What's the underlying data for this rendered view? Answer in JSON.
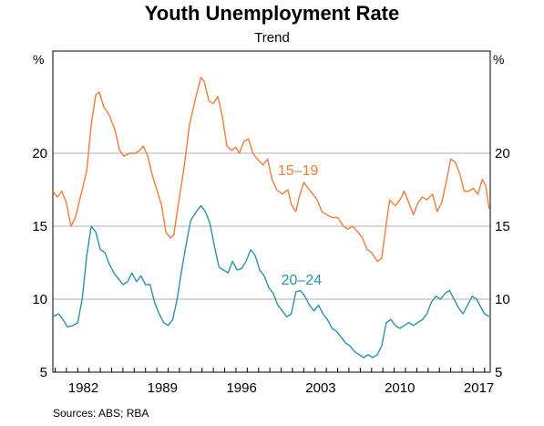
{
  "chart_data": {
    "type": "line",
    "title": "Youth Unemployment Rate",
    "subtitle": "Trend",
    "unit_left": "%",
    "unit_right": "%",
    "source": "Sources:   ABS; RBA",
    "x_range": [
      1979.8,
      2018.5
    ],
    "ylim": [
      5,
      27
    ],
    "y_ticks": [
      5,
      10,
      15,
      20
    ],
    "x_ticks": [
      {
        "value": 1982,
        "label": "1982"
      },
      {
        "value": 1989,
        "label": "1989"
      },
      {
        "value": 1996,
        "label": "1996"
      },
      {
        "value": 2003,
        "label": "2003"
      },
      {
        "value": 2010,
        "label": "2010"
      },
      {
        "value": 2017,
        "label": "2017"
      }
    ],
    "grid": true,
    "series": [
      {
        "name": "15–19",
        "color": "#f07c3c",
        "label_pos": {
          "x": 2001.5,
          "y": 18.5
        },
        "points": [
          [
            1979.8,
            17.4
          ],
          [
            1980.2,
            17.0
          ],
          [
            1980.6,
            17.4
          ],
          [
            1981.0,
            16.6
          ],
          [
            1981.4,
            15.0
          ],
          [
            1981.8,
            15.6
          ],
          [
            1982.3,
            17.2
          ],
          [
            1982.8,
            18.8
          ],
          [
            1983.2,
            22.0
          ],
          [
            1983.6,
            24.0
          ],
          [
            1983.9,
            24.2
          ],
          [
            1984.3,
            23.2
          ],
          [
            1984.8,
            22.6
          ],
          [
            1985.3,
            21.6
          ],
          [
            1985.7,
            20.2
          ],
          [
            1986.1,
            19.8
          ],
          [
            1986.6,
            20.0
          ],
          [
            1987.1,
            20.0
          ],
          [
            1987.5,
            20.2
          ],
          [
            1987.8,
            20.5
          ],
          [
            1988.2,
            19.8
          ],
          [
            1988.6,
            18.5
          ],
          [
            1989.0,
            17.5
          ],
          [
            1989.4,
            16.5
          ],
          [
            1989.8,
            14.6
          ],
          [
            1990.2,
            14.2
          ],
          [
            1990.5,
            14.4
          ],
          [
            1990.9,
            16.5
          ],
          [
            1991.4,
            19.0
          ],
          [
            1991.9,
            22.0
          ],
          [
            1992.5,
            24.0
          ],
          [
            1992.9,
            25.2
          ],
          [
            1993.2,
            24.9
          ],
          [
            1993.6,
            23.6
          ],
          [
            1994.0,
            23.4
          ],
          [
            1994.4,
            23.9
          ],
          [
            1994.8,
            22.5
          ],
          [
            1995.2,
            20.5
          ],
          [
            1995.6,
            20.2
          ],
          [
            1996.0,
            20.4
          ],
          [
            1996.3,
            20.0
          ],
          [
            1996.7,
            20.8
          ],
          [
            1997.1,
            21.0
          ],
          [
            1997.5,
            20.0
          ],
          [
            1997.9,
            19.6
          ],
          [
            1998.4,
            19.2
          ],
          [
            1998.8,
            19.6
          ],
          [
            1999.2,
            18.2
          ],
          [
            1999.6,
            17.5
          ],
          [
            2000.1,
            17.2
          ],
          [
            2000.6,
            17.5
          ],
          [
            2000.9,
            16.5
          ],
          [
            2001.3,
            16.0
          ],
          [
            2001.6,
            17.0
          ],
          [
            2002.0,
            18.0
          ],
          [
            2002.4,
            17.6
          ],
          [
            2002.8,
            17.2
          ],
          [
            2003.2,
            16.8
          ],
          [
            2003.6,
            16.0
          ],
          [
            2004.0,
            15.8
          ],
          [
            2004.5,
            15.6
          ],
          [
            2005.0,
            15.6
          ],
          [
            2005.5,
            15.0
          ],
          [
            2005.9,
            14.8
          ],
          [
            2006.3,
            15.0
          ],
          [
            2006.8,
            14.6
          ],
          [
            2007.2,
            14.2
          ],
          [
            2007.6,
            13.4
          ],
          [
            2008.0,
            13.2
          ],
          [
            2008.5,
            12.6
          ],
          [
            2008.9,
            12.8
          ],
          [
            2009.2,
            14.6
          ],
          [
            2009.6,
            16.8
          ],
          [
            2010.1,
            16.4
          ],
          [
            2010.5,
            16.8
          ],
          [
            2010.9,
            17.4
          ],
          [
            2011.3,
            16.6
          ],
          [
            2011.7,
            15.8
          ],
          [
            2012.1,
            16.6
          ],
          [
            2012.5,
            17.0
          ],
          [
            2012.9,
            16.8
          ],
          [
            2013.4,
            17.2
          ],
          [
            2013.8,
            16.0
          ],
          [
            2014.2,
            16.6
          ],
          [
            2014.6,
            18.0
          ],
          [
            2015.0,
            19.6
          ],
          [
            2015.4,
            19.4
          ],
          [
            2015.8,
            18.6
          ],
          [
            2016.2,
            17.4
          ],
          [
            2016.6,
            17.4
          ],
          [
            2017.0,
            17.6
          ],
          [
            2017.4,
            17.2
          ],
          [
            2017.8,
            18.2
          ],
          [
            2018.1,
            17.8
          ],
          [
            2018.4,
            16.2
          ]
        ]
      },
      {
        "name": "20–24",
        "color": "#2b93a8",
        "label_pos": {
          "x": 2001.8,
          "y": 11.0
        },
        "points": [
          [
            1979.8,
            8.8
          ],
          [
            1980.3,
            9.0
          ],
          [
            1980.7,
            8.6
          ],
          [
            1981.1,
            8.1
          ],
          [
            1981.6,
            8.2
          ],
          [
            1982.0,
            8.4
          ],
          [
            1982.4,
            10.0
          ],
          [
            1982.8,
            13.0
          ],
          [
            1983.2,
            15.0
          ],
          [
            1983.6,
            14.6
          ],
          [
            1984.0,
            13.4
          ],
          [
            1984.4,
            13.2
          ],
          [
            1984.8,
            12.4
          ],
          [
            1985.2,
            11.8
          ],
          [
            1985.6,
            11.4
          ],
          [
            1986.0,
            11.0
          ],
          [
            1986.4,
            11.2
          ],
          [
            1986.8,
            11.8
          ],
          [
            1987.2,
            11.2
          ],
          [
            1987.6,
            11.6
          ],
          [
            1988.0,
            11.0
          ],
          [
            1988.4,
            11.0
          ],
          [
            1988.8,
            9.8
          ],
          [
            1989.2,
            9.0
          ],
          [
            1989.6,
            8.4
          ],
          [
            1990.0,
            8.2
          ],
          [
            1990.4,
            8.6
          ],
          [
            1990.8,
            10.0
          ],
          [
            1991.2,
            12.0
          ],
          [
            1991.6,
            13.8
          ],
          [
            1992.0,
            15.4
          ],
          [
            1992.5,
            16.0
          ],
          [
            1992.9,
            16.4
          ],
          [
            1993.3,
            16.0
          ],
          [
            1993.7,
            15.2
          ],
          [
            1994.1,
            13.6
          ],
          [
            1994.5,
            12.2
          ],
          [
            1994.9,
            12.0
          ],
          [
            1995.3,
            11.8
          ],
          [
            1995.7,
            12.6
          ],
          [
            1996.1,
            12.0
          ],
          [
            1996.5,
            12.1
          ],
          [
            1996.9,
            12.6
          ],
          [
            1997.3,
            13.4
          ],
          [
            1997.7,
            13.0
          ],
          [
            1998.1,
            12.0
          ],
          [
            1998.5,
            11.6
          ],
          [
            1998.9,
            10.8
          ],
          [
            1999.3,
            10.4
          ],
          [
            1999.7,
            9.6
          ],
          [
            2000.1,
            9.2
          ],
          [
            2000.5,
            8.8
          ],
          [
            2000.9,
            9.0
          ],
          [
            2001.3,
            10.5
          ],
          [
            2001.7,
            10.6
          ],
          [
            2002.1,
            10.2
          ],
          [
            2002.5,
            9.6
          ],
          [
            2002.9,
            9.2
          ],
          [
            2003.3,
            9.6
          ],
          [
            2003.7,
            9.0
          ],
          [
            2004.1,
            8.6
          ],
          [
            2004.5,
            8.0
          ],
          [
            2004.9,
            7.8
          ],
          [
            2005.3,
            7.4
          ],
          [
            2005.7,
            7.0
          ],
          [
            2006.1,
            6.8
          ],
          [
            2006.5,
            6.4
          ],
          [
            2006.9,
            6.2
          ],
          [
            2007.3,
            6.0
          ],
          [
            2007.7,
            6.2
          ],
          [
            2008.1,
            6.0
          ],
          [
            2008.5,
            6.2
          ],
          [
            2008.9,
            6.8
          ],
          [
            2009.3,
            8.4
          ],
          [
            2009.7,
            8.6
          ],
          [
            2010.1,
            8.2
          ],
          [
            2010.5,
            8.0
          ],
          [
            2010.9,
            8.2
          ],
          [
            2011.3,
            8.4
          ],
          [
            2011.7,
            8.2
          ],
          [
            2012.1,
            8.4
          ],
          [
            2012.5,
            8.6
          ],
          [
            2012.9,
            9.0
          ],
          [
            2013.3,
            9.8
          ],
          [
            2013.7,
            10.2
          ],
          [
            2014.1,
            10.0
          ],
          [
            2014.5,
            10.4
          ],
          [
            2014.9,
            10.6
          ],
          [
            2015.3,
            10.0
          ],
          [
            2015.7,
            9.4
          ],
          [
            2016.1,
            9.0
          ],
          [
            2016.5,
            9.6
          ],
          [
            2016.9,
            10.2
          ],
          [
            2017.3,
            10.0
          ],
          [
            2017.7,
            9.4
          ],
          [
            2018.0,
            9.0
          ],
          [
            2018.4,
            8.8
          ]
        ]
      }
    ]
  }
}
